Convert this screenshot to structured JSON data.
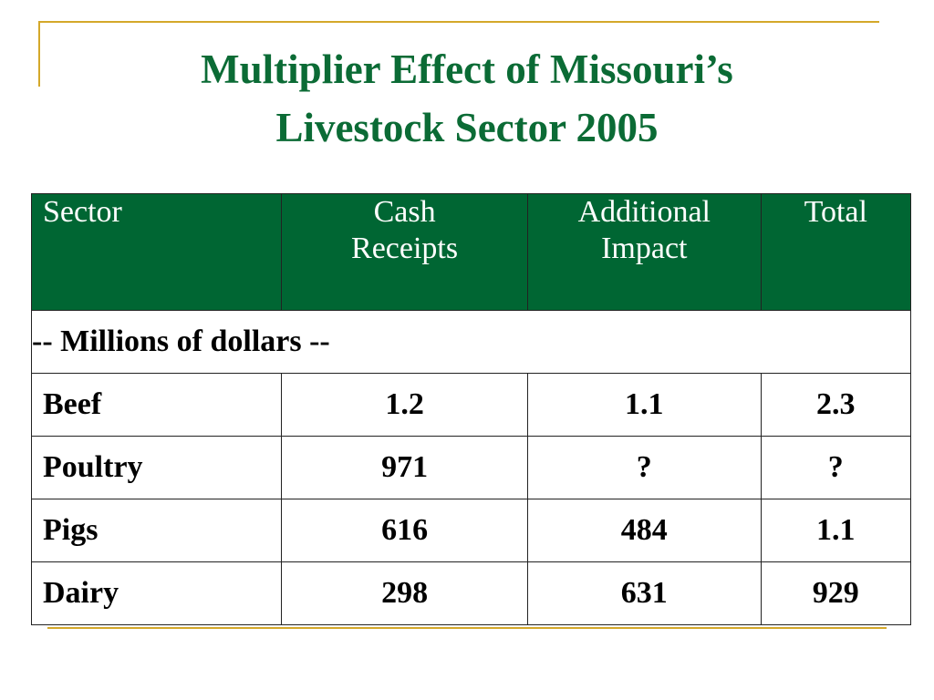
{
  "slide": {
    "title_line1": "Multiplier Effect of Missouri’s",
    "title_line2": "Livestock Sector 2005"
  },
  "table": {
    "headers": {
      "sector": "Sector",
      "cash_line1": "Cash",
      "cash_line2": "Receipts",
      "additional_line1": "Additional",
      "additional_line2": "Impact",
      "total": "Total"
    },
    "units": "-- Millions of dollars --",
    "rows": [
      {
        "sector": "Beef",
        "cash_receipts": "1.2",
        "additional_impact": "1.1",
        "total": "2.3"
      },
      {
        "sector": "Poultry",
        "cash_receipts": "971",
        "additional_impact": "?",
        "total": "?"
      },
      {
        "sector": "Pigs",
        "cash_receipts": "616",
        "additional_impact": "484",
        "total": "1.1"
      },
      {
        "sector": "Dairy",
        "cash_receipts": "298",
        "additional_impact": "631",
        "total": "929"
      }
    ]
  },
  "colors": {
    "title_green": "#0b6b35",
    "header_green": "#006633",
    "accent_gold": "#d4a82a"
  }
}
